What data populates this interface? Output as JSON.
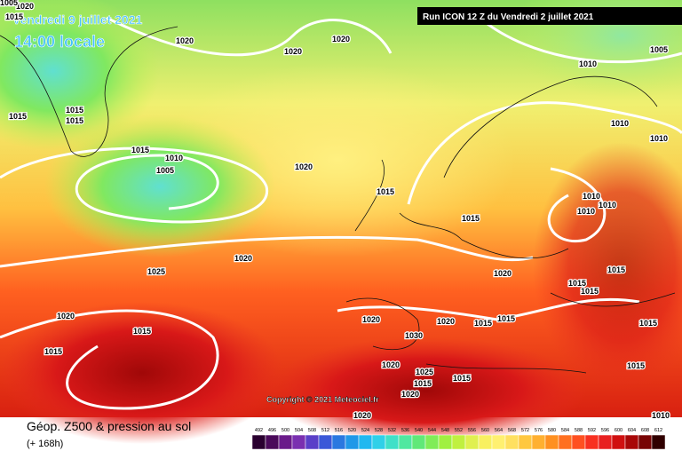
{
  "header": {
    "date": "Vendredi 9 juillet 2021",
    "time": "14:00 locale",
    "run": "Run ICON 12 Z du Vendredi 2 juillet 2021"
  },
  "copyright": "Copyright © 2021 Meteociel.fr",
  "legend": {
    "title": "Géop. Z500 & pression au sol",
    "lead": "(+ 168h)",
    "ticks": [
      "492",
      "496",
      "500",
      "504",
      "508",
      "512",
      "516",
      "520",
      "524",
      "528",
      "532",
      "536",
      "540",
      "544",
      "548",
      "552",
      "556",
      "560",
      "564",
      "568",
      "572",
      "576",
      "580",
      "584",
      "588",
      "592",
      "596",
      "600",
      "604",
      "608",
      "612"
    ],
    "colors": [
      "#2a0030",
      "#4a0a5a",
      "#6a1a8a",
      "#7a30b0",
      "#5a40c8",
      "#3a58d8",
      "#2a78e0",
      "#2098e8",
      "#20b8f0",
      "#30d0e8",
      "#40e0c8",
      "#50e8a0",
      "#60e878",
      "#80ec58",
      "#a0f040",
      "#c0f040",
      "#e0f050",
      "#f8f060",
      "#fff070",
      "#ffe060",
      "#ffc840",
      "#ffb030",
      "#ff9020",
      "#ff7020",
      "#ff5020",
      "#f83020",
      "#e82020",
      "#d01010",
      "#a80808",
      "#780404",
      "#300000"
    ]
  },
  "isobar_labels": [
    "1020",
    "1015",
    "1020",
    "1020",
    "1020",
    "1005",
    "1010",
    "1015",
    "1015",
    "1015",
    "1010",
    "1010",
    "1015",
    "1010",
    "1005",
    "1020",
    "1015",
    "1010",
    "1010",
    "1010",
    "1015",
    "1025",
    "1020",
    "1020",
    "1015",
    "1015",
    "1015",
    "1020",
    "1020",
    "1020",
    "1015",
    "1015",
    "1015",
    "1015",
    "1015",
    "1030",
    "1025",
    "1020",
    "1015",
    "1020",
    "1015",
    "1015",
    "1020",
    "1010",
    "1015",
    "1005"
  ]
}
